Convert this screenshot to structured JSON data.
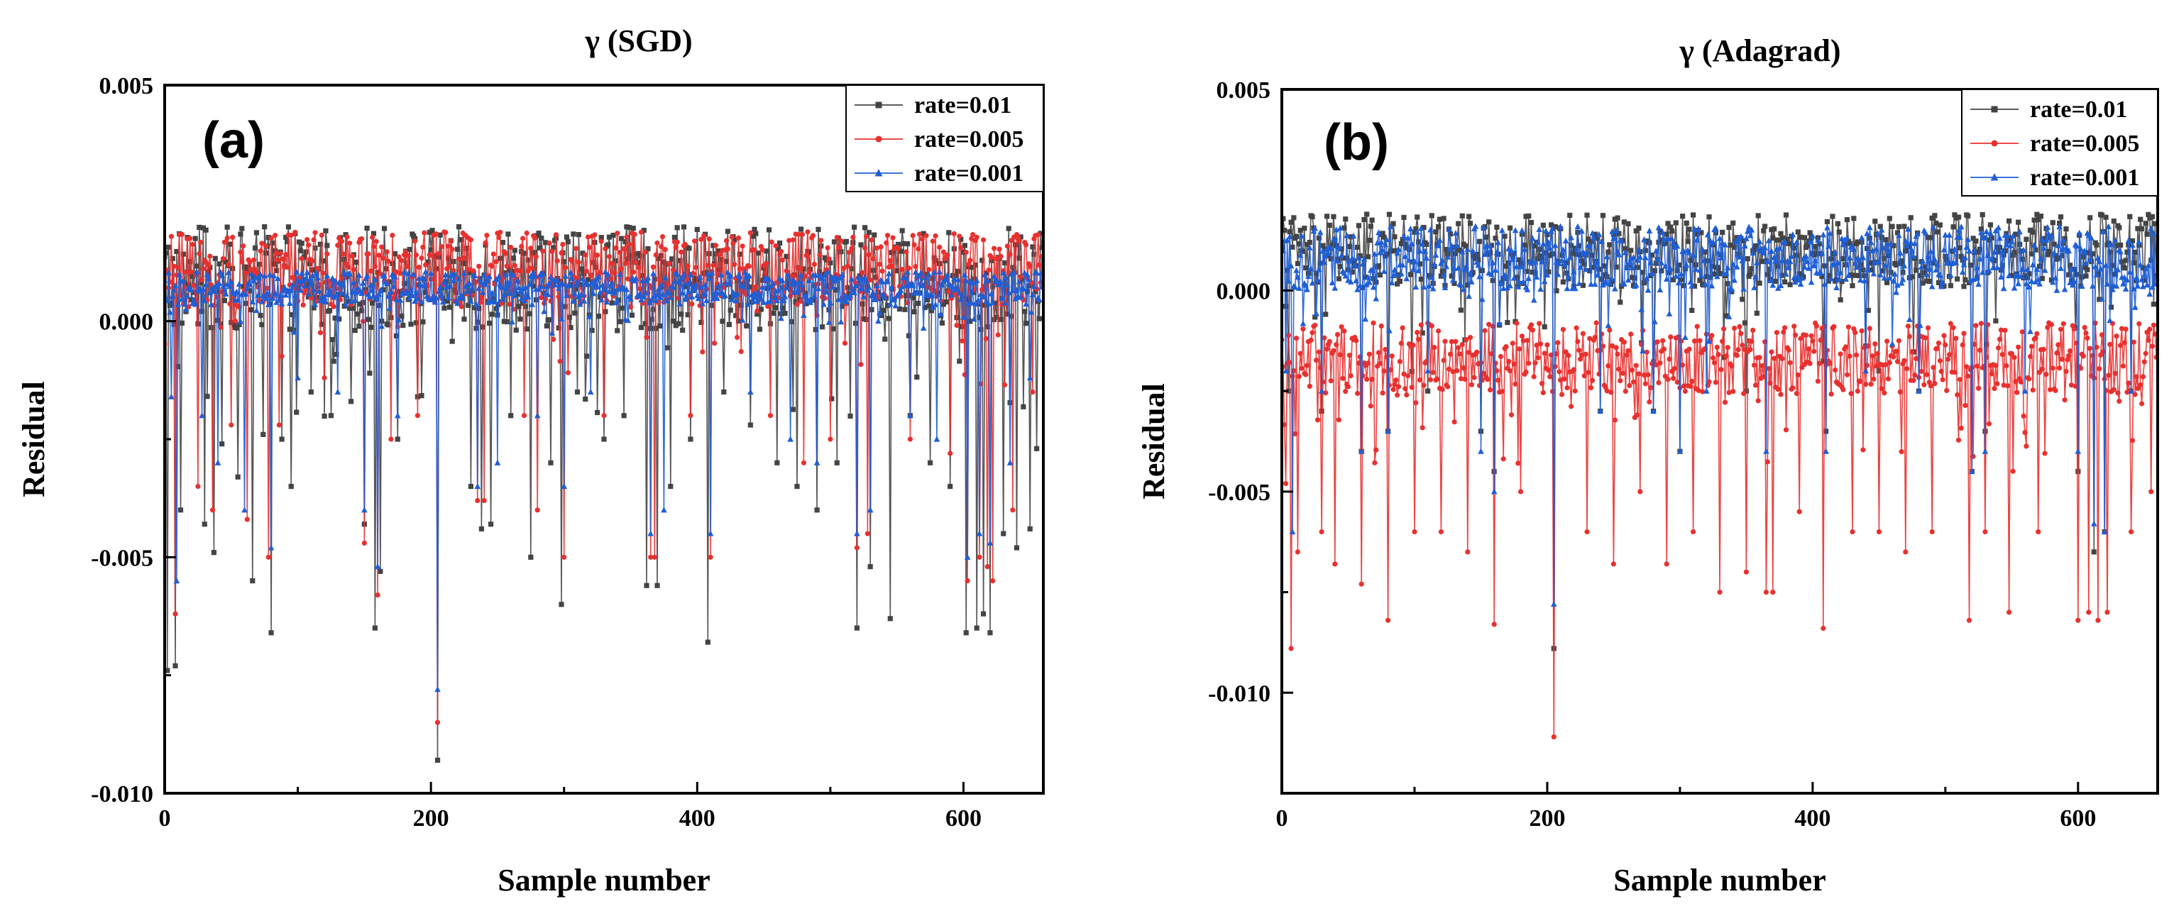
{
  "colors": {
    "rate_0_01": "#444444",
    "rate_0_005": "#e8312f",
    "rate_0_001": "#1f5fd6"
  },
  "chart_data": [
    {
      "type": "line",
      "title": "γ (SGD)",
      "panel_label": "(a)",
      "xlabel": "Sample number",
      "ylabel": "Residual",
      "xlim": [
        0,
        660
      ],
      "ylim": [
        -0.01,
        0.005
      ],
      "xticks": [
        0,
        200,
        400,
        600
      ],
      "xtick_labels": [
        "0",
        "200",
        "400",
        "600"
      ],
      "yticks": [
        0.005,
        0.0,
        -0.005,
        -0.01
      ],
      "ytick_labels": [
        "0.005",
        "0.000",
        "-0.005",
        "-0.010"
      ],
      "legend_position": "top-right",
      "series": [
        {
          "name": "rate=0.01",
          "color": "#444444",
          "marker": "square",
          "baseline": 0.0009,
          "spread": 0.0011,
          "spikes": [
            [
              2,
              -0.0074
            ],
            [
              8,
              -0.0073
            ],
            [
              12,
              -0.004
            ],
            [
              30,
              -0.0043
            ],
            [
              37,
              -0.0049
            ],
            [
              43,
              -0.0026
            ],
            [
              55,
              -0.0033
            ],
            [
              66,
              -0.0055
            ],
            [
              74,
              -0.0024
            ],
            [
              80,
              -0.0066
            ],
            [
              88,
              -0.0025
            ],
            [
              95,
              -0.0035
            ],
            [
              110,
              -0.0015
            ],
            [
              125,
              -0.002
            ],
            [
              140,
              -0.0017
            ],
            [
              150,
              -0.0043
            ],
            [
              158,
              -0.0065
            ],
            [
              162,
              -0.0053
            ],
            [
              175,
              -0.0025
            ],
            [
              190,
              -0.0016
            ],
            [
              205,
              -0.0093
            ],
            [
              230,
              -0.0035
            ],
            [
              238,
              -0.0044
            ],
            [
              245,
              -0.0043
            ],
            [
              260,
              -0.002
            ],
            [
              275,
              -0.005
            ],
            [
              290,
              -0.003
            ],
            [
              298,
              -0.006
            ],
            [
              310,
              -0.0015
            ],
            [
              330,
              -0.0025
            ],
            [
              345,
              -0.002
            ],
            [
              362,
              -0.0056
            ],
            [
              370,
              -0.0056
            ],
            [
              380,
              -0.0035
            ],
            [
              395,
              -0.0025
            ],
            [
              408,
              -0.0068
            ],
            [
              420,
              -0.0015
            ],
            [
              440,
              -0.0022
            ],
            [
              460,
              -0.003
            ],
            [
              475,
              -0.0035
            ],
            [
              490,
              -0.004
            ],
            [
              505,
              -0.003
            ],
            [
              520,
              -0.0065
            ],
            [
              530,
              -0.0052
            ],
            [
              545,
              -0.0063
            ],
            [
              560,
              -0.002
            ],
            [
              575,
              -0.003
            ],
            [
              590,
              -0.0035
            ],
            [
              602,
              -0.0066
            ],
            [
              610,
              -0.0065
            ],
            [
              615,
              -0.0062
            ],
            [
              620,
              -0.0066
            ],
            [
              630,
              -0.0045
            ],
            [
              640,
              -0.0048
            ],
            [
              650,
              -0.0044
            ],
            [
              655,
              -0.0027
            ]
          ]
        },
        {
          "name": "rate=0.005",
          "color": "#e8312f",
          "marker": "circle",
          "baseline": 0.0011,
          "spread": 0.0008,
          "spikes": [
            [
              8,
              -0.0062
            ],
            [
              25,
              -0.0035
            ],
            [
              36,
              -0.004
            ],
            [
              50,
              -0.0022
            ],
            [
              62,
              -0.0042
            ],
            [
              78,
              -0.005
            ],
            [
              86,
              -0.0022
            ],
            [
              120,
              -0.0012
            ],
            [
              150,
              -0.0047
            ],
            [
              160,
              -0.0058
            ],
            [
              170,
              -0.0025
            ],
            [
              190,
              -0.002
            ],
            [
              205,
              -0.0085
            ],
            [
              235,
              -0.0038
            ],
            [
              240,
              -0.0038
            ],
            [
              270,
              -0.002
            ],
            [
              280,
              -0.004
            ],
            [
              300,
              -0.005
            ],
            [
              330,
              -0.002
            ],
            [
              365,
              -0.005
            ],
            [
              368,
              -0.005
            ],
            [
              395,
              -0.002
            ],
            [
              410,
              -0.005
            ],
            [
              455,
              -0.002
            ],
            [
              480,
              -0.003
            ],
            [
              500,
              -0.0025
            ],
            [
              520,
              -0.0048
            ],
            [
              528,
              -0.0045
            ],
            [
              560,
              -0.0025
            ],
            [
              590,
              -0.0028
            ],
            [
              603,
              -0.0055
            ],
            [
              612,
              -0.005
            ],
            [
              618,
              -0.0052
            ],
            [
              622,
              -0.0055
            ],
            [
              637,
              -0.004
            ],
            [
              652,
              -0.0015
            ]
          ]
        },
        {
          "name": "rate=0.001",
          "color": "#1f5fd6",
          "marker": "triangle",
          "baseline": 0.0007,
          "spread": 0.00035,
          "spikes": [
            [
              5,
              -0.0016
            ],
            [
              9,
              -0.0055
            ],
            [
              28,
              -0.002
            ],
            [
              40,
              -0.003
            ],
            [
              60,
              -0.004
            ],
            [
              80,
              -0.0048
            ],
            [
              100,
              -0.0012
            ],
            [
              130,
              -0.0015
            ],
            [
              150,
              -0.004
            ],
            [
              160,
              -0.0052
            ],
            [
              175,
              -0.002
            ],
            [
              205,
              -0.0078
            ],
            [
              235,
              -0.0035
            ],
            [
              250,
              -0.003
            ],
            [
              280,
              -0.002
            ],
            [
              300,
              -0.0035
            ],
            [
              320,
              -0.0015
            ],
            [
              365,
              -0.0045
            ],
            [
              375,
              -0.004
            ],
            [
              410,
              -0.0045
            ],
            [
              440,
              -0.0015
            ],
            [
              470,
              -0.0025
            ],
            [
              490,
              -0.003
            ],
            [
              520,
              -0.0045
            ],
            [
              530,
              -0.004
            ],
            [
              560,
              -0.002
            ],
            [
              580,
              -0.0025
            ],
            [
              603,
              -0.005
            ],
            [
              612,
              -0.0045
            ],
            [
              620,
              -0.0047
            ],
            [
              635,
              -0.003
            ],
            [
              650,
              -0.0012
            ]
          ]
        }
      ]
    },
    {
      "type": "line",
      "title": "γ (Adagrad)",
      "panel_label": "(b)",
      "xlabel": "Sample number",
      "ylabel": "Residual",
      "xlim": [
        0,
        660
      ],
      "ylim": [
        -0.0125,
        0.005
      ],
      "xticks": [
        0,
        200,
        400,
        600
      ],
      "xtick_labels": [
        "0",
        "200",
        "400",
        "600"
      ],
      "yticks": [
        0.005,
        0.0,
        -0.005,
        -0.01
      ],
      "ytick_labels": [
        "0.005",
        "0.000",
        "-0.005",
        "-0.010"
      ],
      "legend_position": "top-right",
      "series": [
        {
          "name": "rate=0.01",
          "color": "#444444",
          "marker": "square",
          "baseline": 0.001,
          "spread": 0.0009,
          "spikes": [
            [
              5,
              -0.0025
            ],
            [
              30,
              -0.003
            ],
            [
              60,
              -0.004
            ],
            [
              80,
              -0.0035
            ],
            [
              110,
              -0.0025
            ],
            [
              150,
              -0.0035
            ],
            [
              160,
              -0.0045
            ],
            [
              205,
              -0.0089
            ],
            [
              240,
              -0.003
            ],
            [
              280,
              -0.003
            ],
            [
              300,
              -0.004
            ],
            [
              350,
              -0.0025
            ],
            [
              410,
              -0.0035
            ],
            [
              450,
              -0.002
            ],
            [
              480,
              -0.0025
            ],
            [
              520,
              -0.0045
            ],
            [
              530,
              -0.0035
            ],
            [
              600,
              -0.0045
            ],
            [
              612,
              -0.0065
            ],
            [
              620,
              -0.006
            ],
            [
              640,
              -0.0025
            ]
          ]
        },
        {
          "name": "rate=0.005",
          "color": "#e8312f",
          "marker": "circle",
          "baseline": -0.0017,
          "spread": 0.0009,
          "spikes": [
            [
              3,
              -0.0048
            ],
            [
              7,
              -0.0089
            ],
            [
              12,
              -0.0065
            ],
            [
              30,
              -0.006
            ],
            [
              40,
              -0.0068
            ],
            [
              60,
              -0.0073
            ],
            [
              80,
              -0.0082
            ],
            [
              100,
              -0.006
            ],
            [
              120,
              -0.006
            ],
            [
              140,
              -0.0065
            ],
            [
              160,
              -0.0083
            ],
            [
              180,
              -0.005
            ],
            [
              205,
              -0.0111
            ],
            [
              230,
              -0.006
            ],
            [
              250,
              -0.0068
            ],
            [
              270,
              -0.005
            ],
            [
              290,
              -0.0068
            ],
            [
              310,
              -0.006
            ],
            [
              330,
              -0.0075
            ],
            [
              350,
              -0.007
            ],
            [
              365,
              -0.0075
            ],
            [
              370,
              -0.0075
            ],
            [
              390,
              -0.0055
            ],
            [
              408,
              -0.0084
            ],
            [
              430,
              -0.006
            ],
            [
              450,
              -0.006
            ],
            [
              470,
              -0.0065
            ],
            [
              490,
              -0.006
            ],
            [
              518,
              -0.0082
            ],
            [
              530,
              -0.006
            ],
            [
              548,
              -0.008
            ],
            [
              570,
              -0.006
            ],
            [
              600,
              -0.0082
            ],
            [
              608,
              -0.008
            ],
            [
              615,
              -0.0082
            ],
            [
              622,
              -0.008
            ],
            [
              640,
              -0.006
            ],
            [
              655,
              -0.005
            ]
          ]
        },
        {
          "name": "rate=0.001",
          "color": "#1f5fd6",
          "marker": "triangle",
          "baseline": 0.0008,
          "spread": 0.0008,
          "spikes": [
            [
              3,
              -0.002
            ],
            [
              8,
              -0.006
            ],
            [
              30,
              -0.0025
            ],
            [
              60,
              -0.004
            ],
            [
              80,
              -0.0035
            ],
            [
              110,
              -0.002
            ],
            [
              150,
              -0.004
            ],
            [
              160,
              -0.005
            ],
            [
              205,
              -0.0078
            ],
            [
              240,
              -0.003
            ],
            [
              280,
              -0.003
            ],
            [
              300,
              -0.004
            ],
            [
              320,
              -0.0025
            ],
            [
              365,
              -0.004
            ],
            [
              410,
              -0.004
            ],
            [
              440,
              -0.002
            ],
            [
              480,
              -0.0025
            ],
            [
              520,
              -0.0045
            ],
            [
              530,
              -0.004
            ],
            [
              560,
              -0.0025
            ],
            [
              600,
              -0.004
            ],
            [
              612,
              -0.0058
            ],
            [
              620,
              -0.006
            ],
            [
              640,
              -0.0025
            ]
          ]
        }
      ]
    }
  ]
}
